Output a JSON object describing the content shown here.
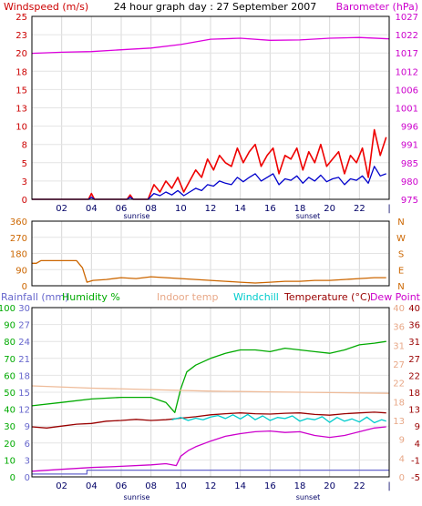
{
  "chart_data": [
    {
      "type": "line",
      "title": "24 hour graph day : 27 September 2007",
      "left_label": "Windspeed (m/s)",
      "right_label": "Barometer (hPa)",
      "colors": {
        "left_label": "#cc0000",
        "right_label": "#cc00cc",
        "wind_gust": "#ee0000",
        "wind_avg": "#0000cc",
        "barometer": "#dd00dd"
      },
      "x_ticks": [
        "02",
        "04",
        "06",
        "08",
        "10",
        "12",
        "14",
        "16",
        "18",
        "20",
        "22",
        "|"
      ],
      "sunrise_label": "sunrise",
      "sunset_label": "sunset",
      "left_ticks": [
        "0",
        "3",
        "5",
        "8",
        "10",
        "13",
        "15",
        "18",
        "20",
        "23",
        "25"
      ],
      "right_ticks": [
        "975",
        "980",
        "985",
        "991",
        "996",
        "1001",
        "1006",
        "1012",
        "1017",
        "1022",
        "1027"
      ],
      "ylim": [
        0,
        25
      ],
      "ylim_right": [
        975,
        1027
      ],
      "grid": true,
      "series": [
        {
          "key": "wind_gust",
          "x": [
            0,
            3.8,
            4.0,
            4.2,
            6.4,
            6.6,
            6.8,
            7.8,
            8.2,
            8.6,
            9.0,
            9.4,
            9.8,
            10.2,
            10.6,
            11.0,
            11.4,
            11.8,
            12.2,
            12.6,
            13.0,
            13.4,
            13.8,
            14.2,
            14.6,
            15.0,
            15.4,
            15.8,
            16.2,
            16.6,
            17.0,
            17.4,
            17.8,
            18.2,
            18.6,
            19.0,
            19.4,
            19.8,
            20.2,
            20.6,
            21.0,
            21.4,
            21.8,
            22.2,
            22.6,
            23.0,
            23.4,
            23.8
          ],
          "y": [
            0,
            0,
            0.8,
            0,
            0,
            0.6,
            0,
            0,
            2.0,
            1.0,
            2.5,
            1.5,
            3.0,
            1.0,
            2.5,
            4.0,
            3.0,
            5.5,
            4.0,
            6.0,
            5.0,
            4.5,
            7.0,
            5.0,
            6.5,
            7.5,
            4.5,
            6.0,
            7.0,
            3.5,
            6.0,
            5.5,
            7.0,
            4.0,
            6.5,
            5.0,
            7.5,
            4.5,
            5.5,
            6.5,
            3.5,
            6.0,
            5.0,
            7.0,
            3.0,
            9.5,
            6.0,
            8.5
          ]
        },
        {
          "key": "wind_avg",
          "x": [
            0,
            3.8,
            4.0,
            4.2,
            6.4,
            6.6,
            6.8,
            7.8,
            8.2,
            8.6,
            9.0,
            9.4,
            9.8,
            10.2,
            10.6,
            11.0,
            11.4,
            11.8,
            12.2,
            12.6,
            13.0,
            13.4,
            13.8,
            14.2,
            14.6,
            15.0,
            15.4,
            15.8,
            16.2,
            16.6,
            17.0,
            17.4,
            17.8,
            18.2,
            18.6,
            19.0,
            19.4,
            19.8,
            20.2,
            20.6,
            21.0,
            21.4,
            21.8,
            22.2,
            22.6,
            23.0,
            23.4,
            23.8
          ],
          "y": [
            0,
            0,
            0.3,
            0,
            0,
            0.3,
            0,
            0,
            0.8,
            0.5,
            1.0,
            0.6,
            1.2,
            0.5,
            1.0,
            1.5,
            1.2,
            2.0,
            1.8,
            2.5,
            2.2,
            2.0,
            3.0,
            2.4,
            3.0,
            3.5,
            2.5,
            3.0,
            3.5,
            2.0,
            2.8,
            2.6,
            3.2,
            2.2,
            3.0,
            2.5,
            3.3,
            2.4,
            2.8,
            3.0,
            2.0,
            2.8,
            2.6,
            3.2,
            2.2,
            4.5,
            3.2,
            3.5
          ]
        },
        {
          "key": "barometer",
          "axis": "right",
          "x": [
            0,
            2,
            4,
            6,
            8,
            10,
            12,
            14,
            16,
            18,
            20,
            22,
            24
          ],
          "y": [
            1016.5,
            1016.8,
            1017.0,
            1017.5,
            1018.0,
            1019.0,
            1020.5,
            1020.8,
            1020.2,
            1020.3,
            1020.8,
            1021.0,
            1020.6
          ]
        }
      ]
    },
    {
      "type": "line",
      "left_ticks": [
        "0",
        "90",
        "180",
        "270",
        "360"
      ],
      "compass_labels": [
        "N",
        "W",
        "S",
        "E",
        "N"
      ],
      "ylim": [
        0,
        360
      ],
      "colors": {
        "direction": "#cc6600",
        "compass": "#cc6600"
      },
      "series": [
        {
          "key": "wind_direction",
          "x": [
            0,
            0.3,
            0.6,
            3.0,
            3.4,
            3.7,
            4.1,
            5.0,
            6.0,
            7.0,
            8.0,
            9.0,
            10.0,
            11.0,
            12.0,
            13.0,
            14.0,
            15.0,
            16.0,
            17.0,
            18.0,
            19.0,
            20.0,
            21.0,
            22.0,
            23.0,
            23.8
          ],
          "y": [
            125,
            125,
            140,
            140,
            100,
            20,
            30,
            35,
            45,
            40,
            50,
            45,
            40,
            35,
            30,
            25,
            20,
            15,
            20,
            25,
            25,
            30,
            30,
            35,
            40,
            45,
            45
          ]
        }
      ]
    },
    {
      "type": "line",
      "header_labels": [
        "Rainfall (mm)",
        "Humidity %",
        "Indoor temp",
        "Windchill",
        "Temperature (°C)",
        "Dew Point"
      ],
      "colors": {
        "rainfall": "#6666cc",
        "humidity": "#00aa00",
        "indoor": "#eebb99",
        "windchill": "#00cccc",
        "temperature": "#990000",
        "dewpoint": "#cc00cc"
      },
      "x_ticks": [
        "02",
        "04",
        "06",
        "08",
        "10",
        "12",
        "14",
        "16",
        "18",
        "20",
        "22",
        "|"
      ],
      "sunrise_label": "sunrise",
      "sunset_label": "sunset",
      "rain_ticks": [
        "0",
        "3",
        "6",
        "9",
        "12",
        "15",
        "18",
        "21",
        "24",
        "27",
        "30"
      ],
      "humidity_ticks": [
        "0",
        "10",
        "20",
        "30",
        "40",
        "50",
        "60",
        "70",
        "80",
        "90",
        "100"
      ],
      "indoor_ticks": [
        "0",
        "4",
        "9",
        "13",
        "18",
        "22",
        "27",
        "31",
        "36",
        "40"
      ],
      "temp_ticks": [
        "-5",
        "-1",
        "4",
        "9",
        "13",
        "18",
        "22",
        "27",
        "31",
        "36",
        "40"
      ],
      "ylim_humidity": [
        0,
        100
      ],
      "ylim_temp": [
        -5,
        40
      ],
      "series": [
        {
          "key": "humidity",
          "axis": "humidity",
          "x": [
            0,
            2,
            4,
            6,
            8,
            9,
            9.6,
            10,
            10.4,
            11,
            12,
            13,
            14,
            15,
            16,
            17,
            18,
            19,
            20,
            21,
            22,
            23,
            23.8
          ],
          "y": [
            42,
            44,
            46,
            47,
            47,
            44,
            38,
            52,
            62,
            66,
            70,
            73,
            75,
            75,
            74,
            76,
            75,
            74,
            73,
            75,
            78,
            79,
            80
          ]
        },
        {
          "key": "rainfall",
          "axis": "rain",
          "x": [
            0,
            3.7,
            3.7,
            24
          ],
          "y": [
            0.5,
            0.5,
            1.2,
            1.2
          ]
        },
        {
          "key": "indoor_temp",
          "axis": "temp",
          "x": [
            0,
            4,
            8,
            12,
            16,
            20,
            24
          ],
          "y": [
            19.2,
            18.6,
            18.2,
            17.8,
            17.6,
            17.4,
            17.2
          ]
        },
        {
          "key": "temperature",
          "axis": "temp",
          "x": [
            0,
            1,
            2,
            3,
            4,
            5,
            6,
            7,
            8,
            9,
            10,
            11,
            12,
            13,
            14,
            15,
            16,
            17,
            18,
            19,
            20,
            21,
            22,
            23,
            23.8
          ],
          "y": [
            8.3,
            8.0,
            8.5,
            9.0,
            9.2,
            9.8,
            10.0,
            10.3,
            10.0,
            10.2,
            10.6,
            11.0,
            11.5,
            11.8,
            12.0,
            11.8,
            11.7,
            11.9,
            12.0,
            11.6,
            11.4,
            11.8,
            12.0,
            12.2,
            12.0
          ]
        },
        {
          "key": "windchill",
          "axis": "temp",
          "x": [
            9.4,
            10,
            10.5,
            11,
            11.5,
            12,
            12.5,
            13,
            13.5,
            14,
            14.5,
            15,
            15.5,
            16,
            16.5,
            17,
            17.5,
            18,
            18.5,
            19,
            19.5,
            20,
            20.5,
            21,
            21.5,
            22,
            22.5,
            23,
            23.5,
            23.8
          ],
          "y": [
            10.2,
            10.8,
            10.0,
            10.6,
            10.2,
            10.9,
            11.3,
            10.5,
            11.5,
            10.4,
            11.6,
            10.2,
            11.2,
            10.0,
            10.8,
            10.5,
            11.2,
            9.8,
            10.5,
            10.2,
            11.0,
            9.5,
            10.8,
            9.8,
            10.4,
            9.6,
            10.9,
            9.4,
            10.2,
            9.8
          ]
        },
        {
          "key": "dew_point",
          "axis": "temp",
          "x": [
            0,
            2,
            4,
            6,
            8,
            9,
            9.7,
            10,
            10.5,
            11,
            12,
            13,
            14,
            15,
            16,
            17,
            18,
            19,
            20,
            21,
            22,
            23,
            23.8
          ],
          "y": [
            -3.5,
            -3.0,
            -2.5,
            -2.2,
            -1.8,
            -1.5,
            -2.0,
            0.5,
            2.0,
            3.0,
            4.5,
            5.8,
            6.5,
            7.0,
            7.2,
            6.8,
            7.0,
            6.0,
            5.5,
            6.0,
            7.0,
            8.0,
            8.3
          ]
        }
      ]
    }
  ]
}
